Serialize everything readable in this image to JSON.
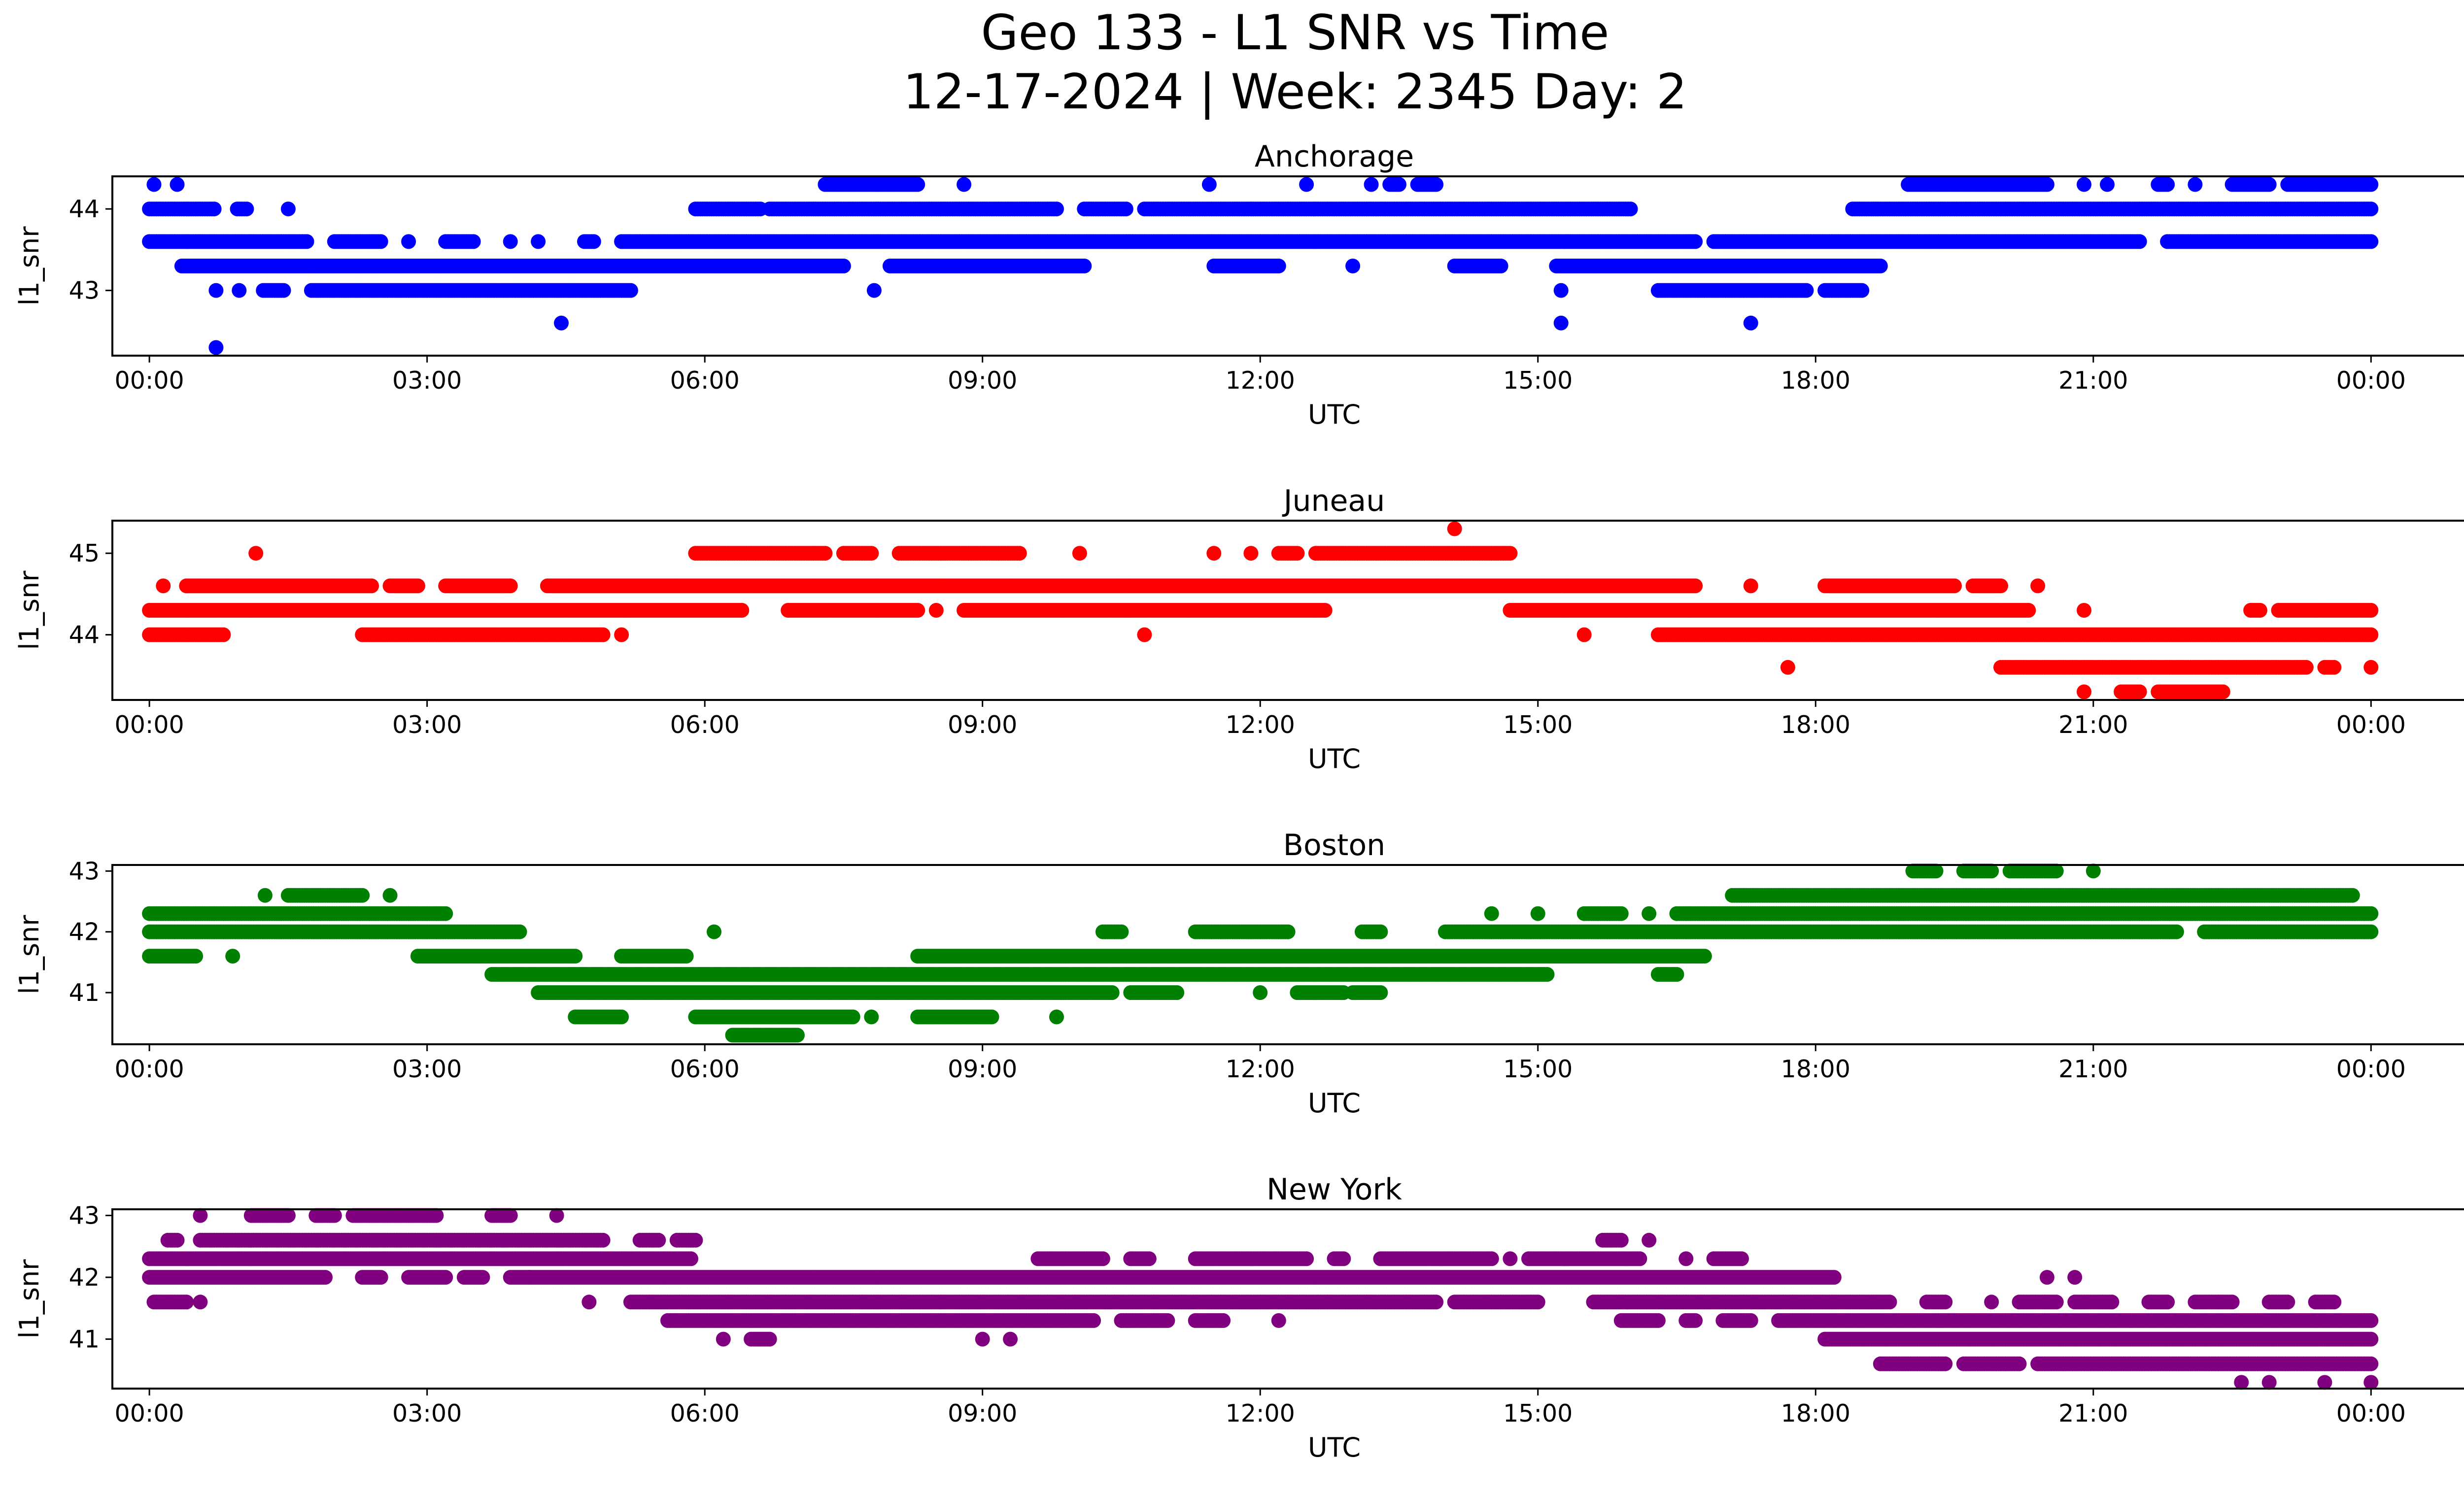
{
  "title_line1": "Geo 133 - L1 SNR vs Time",
  "title_line2": "12-17-2024 | Week: 2345 Day: 2",
  "chart_data": [
    {
      "type": "scatter",
      "title": "Anchorage",
      "xlabel": "UTC",
      "ylabel": "l1_snr",
      "color": "#0000ff",
      "xlim_hours": [
        -0.4,
        26.0
      ],
      "ylim": [
        42.2,
        44.4
      ],
      "yticks": [
        43,
        44
      ],
      "xticks_hours": [
        0,
        3,
        6,
        9,
        12,
        15,
        18,
        21,
        24
      ],
      "xtick_labels": [
        "00:00",
        "03:00",
        "06:00",
        "09:00",
        "12:00",
        "15:00",
        "18:00",
        "21:00",
        "00:00"
      ],
      "levels": [
        {
          "y": 42.3,
          "segments": [
            [
              0.72,
              0.72
            ]
          ]
        },
        {
          "y": 42.6,
          "segments": [
            [
              4.45,
              4.45
            ],
            [
              15.25,
              15.25
            ],
            [
              17.3,
              17.3
            ]
          ]
        },
        {
          "y": 43.0,
          "segments": [
            [
              0.72,
              0.72
            ],
            [
              0.97,
              0.97
            ],
            [
              1.23,
              1.45
            ],
            [
              1.75,
              5.2
            ],
            [
              7.83,
              7.83
            ],
            [
              15.25,
              15.25
            ],
            [
              16.3,
              17.9
            ],
            [
              18.1,
              18.5
            ]
          ]
        },
        {
          "y": 43.3,
          "segments": [
            [
              0.35,
              7.5
            ],
            [
              8.0,
              10.1
            ],
            [
              11.5,
              12.2
            ],
            [
              13.0,
              13.0
            ],
            [
              14.1,
              14.6
            ],
            [
              15.2,
              18.7
            ]
          ]
        },
        {
          "y": 43.6,
          "segments": [
            [
              0.0,
              1.7
            ],
            [
              2.0,
              2.5
            ],
            [
              2.8,
              2.8
            ],
            [
              3.2,
              3.5
            ],
            [
              3.9,
              3.9
            ],
            [
              4.2,
              4.2
            ],
            [
              4.7,
              4.8
            ],
            [
              5.1,
              16.7
            ],
            [
              16.9,
              21.5
            ],
            [
              21.8,
              24.0
            ]
          ]
        },
        {
          "y": 44.0,
          "segments": [
            [
              0.0,
              0.7
            ],
            [
              0.95,
              1.05
            ],
            [
              1.5,
              1.5
            ],
            [
              5.9,
              6.6
            ],
            [
              6.7,
              9.8
            ],
            [
              10.1,
              10.55
            ],
            [
              10.75,
              16.0
            ],
            [
              18.4,
              24.0
            ]
          ]
        },
        {
          "y": 44.3,
          "segments": [
            [
              0.05,
              0.05
            ],
            [
              0.3,
              0.3
            ],
            [
              7.3,
              8.3
            ],
            [
              8.8,
              8.8
            ],
            [
              11.45,
              11.45
            ],
            [
              12.5,
              12.5
            ],
            [
              13.2,
              13.2
            ],
            [
              13.4,
              13.5
            ],
            [
              13.7,
              13.9
            ],
            [
              19.0,
              20.5
            ],
            [
              20.9,
              20.9
            ],
            [
              21.15,
              21.15
            ],
            [
              21.7,
              21.8
            ],
            [
              22.1,
              22.1
            ],
            [
              22.5,
              22.9
            ],
            [
              23.1,
              24.0
            ]
          ]
        }
      ]
    },
    {
      "type": "scatter",
      "title": "Juneau",
      "xlabel": "UTC",
      "ylabel": "l1_snr",
      "color": "#ff0000",
      "xlim_hours": [
        -0.4,
        26.0
      ],
      "ylim": [
        43.2,
        45.4
      ],
      "yticks": [
        44,
        45
      ],
      "xticks_hours": [
        0,
        3,
        6,
        9,
        12,
        15,
        18,
        21,
        24
      ],
      "xtick_labels": [
        "00:00",
        "03:00",
        "06:00",
        "09:00",
        "12:00",
        "15:00",
        "18:00",
        "21:00",
        "00:00"
      ],
      "levels": [
        {
          "y": 43.3,
          "segments": [
            [
              20.9,
              20.9
            ],
            [
              21.3,
              21.5
            ],
            [
              21.7,
              22.4
            ]
          ]
        },
        {
          "y": 43.6,
          "segments": [
            [
              17.7,
              17.7
            ],
            [
              20.0,
              23.3
            ],
            [
              23.5,
              23.6
            ],
            [
              24.0,
              24.0
            ]
          ]
        },
        {
          "y": 44.0,
          "segments": [
            [
              0.0,
              0.8
            ],
            [
              2.3,
              4.9
            ],
            [
              5.1,
              5.1
            ],
            [
              10.75,
              10.75
            ],
            [
              15.5,
              15.5
            ],
            [
              16.3,
              24.0
            ]
          ]
        },
        {
          "y": 44.3,
          "segments": [
            [
              0.0,
              6.4
            ],
            [
              6.9,
              8.3
            ],
            [
              8.5,
              8.5
            ],
            [
              8.8,
              12.7
            ],
            [
              14.7,
              20.3
            ],
            [
              20.9,
              20.9
            ],
            [
              22.7,
              22.8
            ],
            [
              23.0,
              24.0
            ]
          ]
        },
        {
          "y": 44.6,
          "segments": [
            [
              0.15,
              0.15
            ],
            [
              0.4,
              2.4
            ],
            [
              2.6,
              2.9
            ],
            [
              3.2,
              3.9
            ],
            [
              4.3,
              16.7
            ],
            [
              17.3,
              17.3
            ],
            [
              18.1,
              19.5
            ],
            [
              19.7,
              20.0
            ],
            [
              20.4,
              20.4
            ]
          ]
        },
        {
          "y": 45.0,
          "segments": [
            [
              1.15,
              1.15
            ],
            [
              5.9,
              7.3
            ],
            [
              7.5,
              7.8
            ],
            [
              8.1,
              9.4
            ],
            [
              10.05,
              10.05
            ],
            [
              11.5,
              11.5
            ],
            [
              11.9,
              11.9
            ],
            [
              12.2,
              12.4
            ],
            [
              12.6,
              14.7
            ]
          ]
        },
        {
          "y": 45.3,
          "segments": [
            [
              14.1,
              14.1
            ]
          ]
        }
      ]
    },
    {
      "type": "scatter",
      "title": "Boston",
      "xlabel": "UTC",
      "ylabel": "l1_snr",
      "color": "#008000",
      "xlim_hours": [
        -0.4,
        26.0
      ],
      "ylim": [
        40.15,
        43.1
      ],
      "yticks": [
        41,
        42,
        43
      ],
      "xticks_hours": [
        0,
        3,
        6,
        9,
        12,
        15,
        18,
        21,
        24
      ],
      "xtick_labels": [
        "00:00",
        "03:00",
        "06:00",
        "09:00",
        "12:00",
        "15:00",
        "18:00",
        "21:00",
        "00:00"
      ],
      "levels": [
        {
          "y": 40.3,
          "segments": [
            [
              6.3,
              7.0
            ]
          ]
        },
        {
          "y": 40.6,
          "segments": [
            [
              4.6,
              5.1
            ],
            [
              5.9,
              7.6
            ],
            [
              7.8,
              7.8
            ],
            [
              8.3,
              9.1
            ],
            [
              9.8,
              9.8
            ]
          ]
        },
        {
          "y": 41.0,
          "segments": [
            [
              4.2,
              10.4
            ],
            [
              10.6,
              11.1
            ],
            [
              12.0,
              12.0
            ],
            [
              12.4,
              12.9
            ],
            [
              13.0,
              13.3
            ]
          ]
        },
        {
          "y": 41.3,
          "segments": [
            [
              3.7,
              15.1
            ],
            [
              16.3,
              16.5
            ]
          ]
        },
        {
          "y": 41.6,
          "segments": [
            [
              0.0,
              0.5
            ],
            [
              0.9,
              0.9
            ],
            [
              2.9,
              4.6
            ],
            [
              5.1,
              5.8
            ],
            [
              8.3,
              16.8
            ]
          ]
        },
        {
          "y": 42.0,
          "segments": [
            [
              0.0,
              4.0
            ],
            [
              6.1,
              6.1
            ],
            [
              10.3,
              10.5
            ],
            [
              11.3,
              12.3
            ],
            [
              13.1,
              13.3
            ],
            [
              14.0,
              21.9
            ],
            [
              22.2,
              24.0
            ]
          ]
        },
        {
          "y": 42.3,
          "segments": [
            [
              0.0,
              3.2
            ],
            [
              14.5,
              14.5
            ],
            [
              15.0,
              15.0
            ],
            [
              15.5,
              15.9
            ],
            [
              16.2,
              16.2
            ],
            [
              16.5,
              24.0
            ]
          ]
        },
        {
          "y": 42.6,
          "segments": [
            [
              1.25,
              1.25
            ],
            [
              1.5,
              2.3
            ],
            [
              2.6,
              2.6
            ],
            [
              17.1,
              23.8
            ]
          ]
        },
        {
          "y": 43.0,
          "segments": [
            [
              19.05,
              19.3
            ],
            [
              19.6,
              19.9
            ],
            [
              20.1,
              20.6
            ],
            [
              21.0,
              21.0
            ]
          ]
        }
      ]
    },
    {
      "type": "scatter",
      "title": "New York",
      "xlabel": "UTC",
      "ylabel": "l1_snr",
      "color": "#800080",
      "xlim_hours": [
        -0.4,
        26.0
      ],
      "ylim": [
        40.2,
        43.1
      ],
      "yticks": [
        41,
        42,
        43
      ],
      "xticks_hours": [
        0,
        3,
        6,
        9,
        12,
        15,
        18,
        21,
        24
      ],
      "xtick_labels": [
        "00:00",
        "03:00",
        "06:00",
        "09:00",
        "12:00",
        "15:00",
        "18:00",
        "21:00",
        "00:00"
      ],
      "levels": [
        {
          "y": 40.3,
          "segments": [
            [
              22.6,
              22.6
            ],
            [
              22.9,
              22.9
            ],
            [
              23.5,
              23.5
            ],
            [
              24.0,
              24.0
            ]
          ]
        },
        {
          "y": 40.6,
          "segments": [
            [
              18.7,
              19.4
            ],
            [
              19.6,
              20.2
            ],
            [
              20.4,
              24.0
            ]
          ]
        },
        {
          "y": 41.0,
          "segments": [
            [
              6.2,
              6.2
            ],
            [
              6.5,
              6.7
            ],
            [
              9.0,
              9.0
            ],
            [
              9.3,
              9.3
            ],
            [
              18.1,
              24.0
            ]
          ]
        },
        {
          "y": 41.3,
          "segments": [
            [
              5.6,
              10.2
            ],
            [
              10.5,
              11.0
            ],
            [
              11.3,
              11.6
            ],
            [
              12.2,
              12.2
            ],
            [
              15.9,
              16.3
            ],
            [
              16.6,
              16.7
            ],
            [
              17.0,
              17.3
            ],
            [
              17.6,
              24.0
            ]
          ]
        },
        {
          "y": 41.6,
          "segments": [
            [
              0.05,
              0.4
            ],
            [
              0.55,
              0.55
            ],
            [
              4.75,
              4.75
            ],
            [
              5.2,
              13.9
            ],
            [
              14.1,
              15.0
            ],
            [
              15.6,
              18.8
            ],
            [
              19.2,
              19.4
            ],
            [
              19.9,
              19.9
            ],
            [
              20.2,
              20.6
            ],
            [
              20.8,
              21.2
            ],
            [
              21.6,
              21.8
            ],
            [
              22.1,
              22.5
            ],
            [
              22.9,
              23.1
            ],
            [
              23.4,
              23.6
            ]
          ]
        },
        {
          "y": 42.0,
          "segments": [
            [
              0.0,
              1.9
            ],
            [
              2.3,
              2.5
            ],
            [
              2.8,
              3.2
            ],
            [
              3.4,
              3.6
            ],
            [
              3.9,
              4.1
            ],
            [
              4.1,
              18.2
            ],
            [
              20.5,
              20.5
            ],
            [
              20.8,
              20.8
            ]
          ]
        },
        {
          "y": 42.3,
          "segments": [
            [
              0.0,
              5.85
            ],
            [
              9.6,
              10.3
            ],
            [
              10.6,
              10.8
            ],
            [
              11.3,
              12.5
            ],
            [
              12.8,
              12.9
            ],
            [
              13.3,
              14.5
            ],
            [
              14.7,
              14.7
            ],
            [
              14.9,
              16.1
            ],
            [
              16.6,
              16.6
            ],
            [
              16.9,
              17.2
            ]
          ]
        },
        {
          "y": 42.6,
          "segments": [
            [
              0.2,
              0.3
            ],
            [
              0.55,
              4.9
            ],
            [
              5.3,
              5.5
            ],
            [
              5.7,
              5.9
            ],
            [
              15.7,
              15.9
            ],
            [
              16.2,
              16.2
            ]
          ]
        },
        {
          "y": 43.0,
          "segments": [
            [
              0.55,
              0.55
            ],
            [
              1.1,
              1.5
            ],
            [
              1.8,
              2.0
            ],
            [
              2.2,
              3.1
            ],
            [
              3.7,
              3.9
            ],
            [
              4.4,
              4.4
            ]
          ]
        }
      ]
    }
  ]
}
